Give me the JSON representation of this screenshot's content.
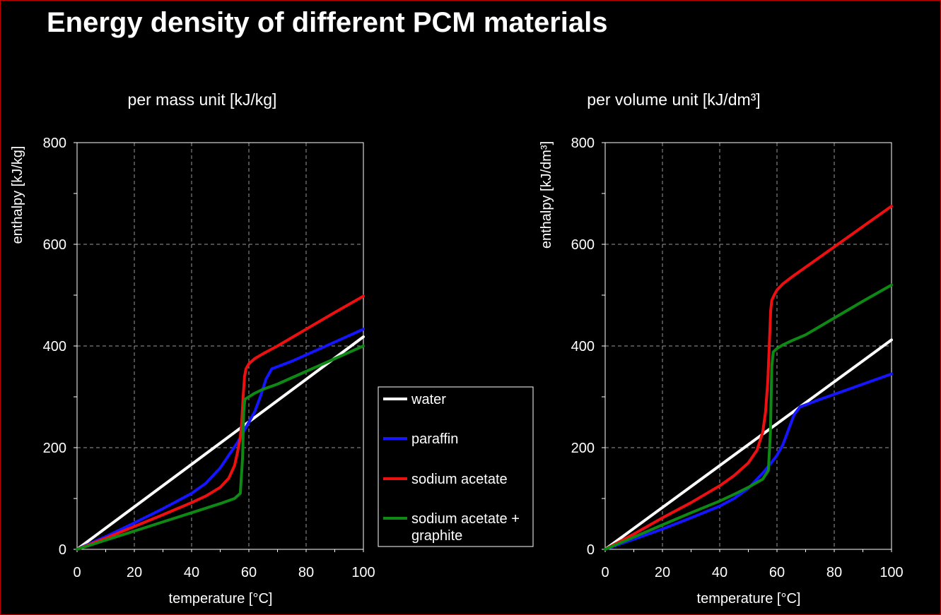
{
  "page": {
    "title": "Energy density of different PCM materials"
  },
  "legend": {
    "items": [
      {
        "label": "water",
        "color": "#ffffff"
      },
      {
        "label": "paraffin",
        "color": "#1515ff"
      },
      {
        "label": "sodium acetate",
        "color": "#ee1010"
      },
      {
        "label": "sodium acetate +",
        "label2": "graphite",
        "color": "#0e8a14"
      }
    ]
  },
  "chart_data": [
    {
      "type": "line",
      "title": "per mass unit [kJ/kg]",
      "xlabel": "temperature [°C]",
      "ylabel": "enthalpy [kJ/kg]",
      "xlim": [
        0,
        100
      ],
      "ylim": [
        0,
        800
      ],
      "x_ticks": [
        0,
        20,
        40,
        60,
        80,
        100
      ],
      "y_ticks": [
        0,
        200,
        400,
        600,
        800
      ],
      "grid": true,
      "series": [
        {
          "name": "water",
          "color": "#ffffff",
          "x": [
            0,
            100
          ],
          "y": [
            0,
            418
          ]
        },
        {
          "name": "paraffin",
          "color": "#1515ff",
          "x": [
            0,
            10,
            20,
            30,
            40,
            45,
            50,
            53,
            56,
            58,
            60,
            62,
            64,
            66,
            68,
            75,
            85,
            100
          ],
          "y": [
            0,
            25,
            52,
            80,
            110,
            130,
            160,
            185,
            210,
            230,
            250,
            270,
            300,
            335,
            355,
            370,
            395,
            433
          ]
        },
        {
          "name": "sodium acetate",
          "color": "#ee1010",
          "x": [
            0,
            10,
            20,
            30,
            40,
            45,
            50,
            53,
            55,
            56,
            57,
            57.5,
            58,
            58.5,
            59,
            60,
            62,
            65,
            70,
            80,
            90,
            100
          ],
          "y": [
            0,
            22,
            45,
            68,
            92,
            105,
            122,
            140,
            165,
            190,
            220,
            250,
            300,
            340,
            355,
            365,
            375,
            385,
            400,
            433,
            466,
            498
          ]
        },
        {
          "name": "sodium acetate + graphite",
          "color": "#0e8a14",
          "x": [
            0,
            10,
            20,
            30,
            40,
            50,
            55,
            57,
            57.8,
            58.2,
            58.6,
            60,
            62,
            65,
            70,
            80,
            90,
            100
          ],
          "y": [
            0,
            18,
            36,
            54,
            72,
            90,
            100,
            110,
            180,
            270,
            295,
            300,
            307,
            315,
            325,
            350,
            375,
            400
          ]
        }
      ]
    },
    {
      "type": "line",
      "title": "per volume unit [kJ/dm³]",
      "xlabel": "temperature [°C]",
      "ylabel": "enthalpy [kJ/dm³]",
      "xlim": [
        0,
        100
      ],
      "ylim": [
        0,
        800
      ],
      "x_ticks": [
        0,
        20,
        40,
        60,
        80,
        100
      ],
      "y_ticks": [
        0,
        200,
        400,
        600,
        800
      ],
      "grid": true,
      "series": [
        {
          "name": "water",
          "color": "#ffffff",
          "x": [
            0,
            100
          ],
          "y": [
            0,
            412
          ]
        },
        {
          "name": "paraffin",
          "color": "#1515ff",
          "x": [
            0,
            10,
            20,
            30,
            40,
            45,
            50,
            55,
            58,
            60,
            62,
            64,
            66,
            68,
            75,
            85,
            100
          ],
          "y": [
            0,
            20,
            40,
            62,
            85,
            100,
            120,
            150,
            170,
            185,
            205,
            235,
            265,
            280,
            295,
            315,
            345
          ]
        },
        {
          "name": "sodium acetate",
          "color": "#ee1010",
          "x": [
            0,
            10,
            20,
            30,
            40,
            45,
            50,
            53,
            55,
            56,
            56.8,
            57.3,
            57.8,
            58.2,
            59,
            60,
            62,
            65,
            70,
            80,
            90,
            100
          ],
          "y": [
            0,
            30,
            62,
            92,
            125,
            145,
            170,
            195,
            230,
            270,
            330,
            400,
            470,
            490,
            500,
            510,
            522,
            535,
            555,
            595,
            635,
            675
          ]
        },
        {
          "name": "sodium acetate + graphite",
          "color": "#0e8a14",
          "x": [
            0,
            10,
            20,
            30,
            40,
            45,
            50,
            55,
            57,
            57.7,
            58.2,
            58.7,
            60,
            62,
            65,
            70,
            80,
            90,
            100
          ],
          "y": [
            0,
            24,
            48,
            72,
            95,
            108,
            122,
            138,
            155,
            230,
            360,
            388,
            395,
            402,
            410,
            422,
            455,
            488,
            520
          ]
        }
      ]
    }
  ]
}
